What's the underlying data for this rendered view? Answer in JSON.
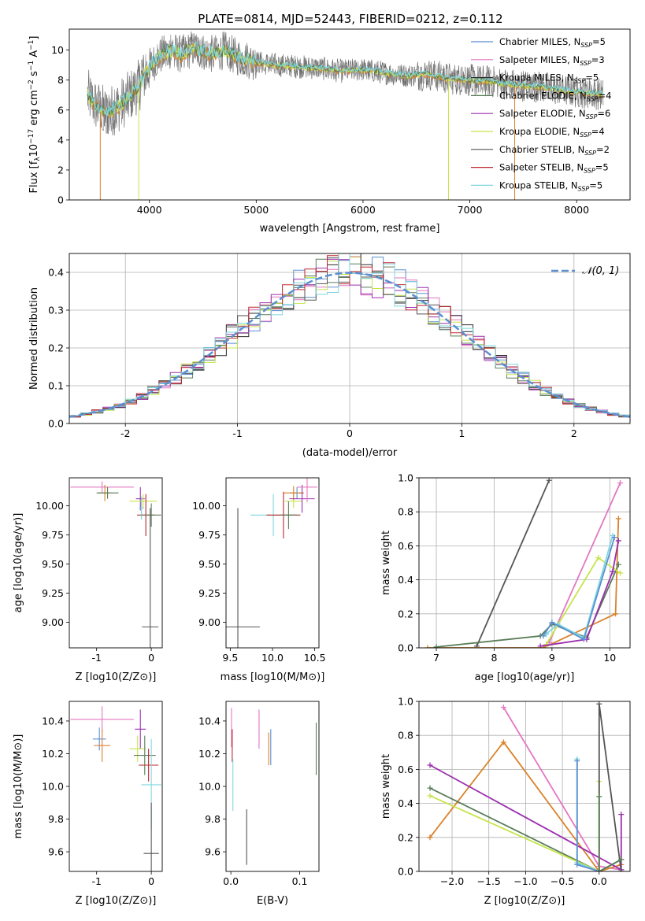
{
  "figure": {
    "title": "PLATE=0814, MJD=52443, FIBERID=0212, z=0.112"
  },
  "colors": {
    "chabrier_miles": "#5b8fd1",
    "salpeter_miles": "#e377c2",
    "kroupa_miles": "#2b2b2b",
    "chabrier_elodie": "#5a7d5a",
    "salpeter_elodie": "#9b2fae",
    "kroupa_elodie": "#c6e44c",
    "chabrier_stelib": "#555555",
    "salpeter_stelib": "#c0272d",
    "kroupa_stelib": "#7fd6df",
    "orange": "#d9822b",
    "gaussian": "#5b8fd1",
    "grid": "#b0b0b0"
  },
  "chart_data": [
    {
      "id": "spectrum",
      "type": "line",
      "title": "PLATE=0814, MJD=52443, FIBERID=0212, z=0.112",
      "xlabel": "wavelength [Angstrom, rest frame]",
      "ylabel": "Flux [f_λ 10^-17 erg cm^-2 s^-1 A^-1]",
      "xlim": [
        3250,
        8500
      ],
      "ylim": [
        0,
        11.4
      ],
      "xticks": [
        4000,
        5000,
        6000,
        7000,
        8000
      ],
      "yticks": [
        0,
        2,
        4,
        6,
        8,
        10
      ],
      "grid": false,
      "legend_position": "right",
      "legend": [
        {
          "label": "Chabrier MILES, N",
          "sub": "SSP",
          "n": "=5",
          "color_key": "chabrier_miles"
        },
        {
          "label": "Salpeter MILES, N",
          "sub": "SSP",
          "n": "=3",
          "color_key": "salpeter_miles"
        },
        {
          "label": "Kroupa MILES, N",
          "sub": "SSP",
          "n": "=5",
          "color_key": "kroupa_miles"
        },
        {
          "label": "Chabrier ELODIE, N",
          "sub": "SSP",
          "n": "=4",
          "color_key": "chabrier_elodie"
        },
        {
          "label": "Salpeter ELODIE, N",
          "sub": "SSP",
          "n": "=6",
          "color_key": "salpeter_elodie"
        },
        {
          "label": "Kroupa ELODIE, N",
          "sub": "SSP",
          "n": "=4",
          "color_key": "kroupa_elodie"
        },
        {
          "label": "Chabrier STELIB, N",
          "sub": "SSP",
          "n": "=2",
          "color_key": "chabrier_stelib"
        },
        {
          "label": "Salpeter STELIB, N",
          "sub": "SSP",
          "n": "=5",
          "color_key": "salpeter_stelib"
        },
        {
          "label": "Kroupa STELIB, N",
          "sub": "SSP",
          "n": "=5",
          "color_key": "kroupa_stelib"
        }
      ],
      "continuum": {
        "x": [
          3420,
          3500,
          3600,
          3700,
          3800,
          3900,
          4000,
          4100,
          4200,
          4300,
          4400,
          4500,
          4600,
          4700,
          4800,
          4900,
          5000,
          5200,
          5400,
          5600,
          5800,
          6000,
          6200,
          6400,
          6600,
          6800,
          7000,
          7200,
          7400,
          7600,
          7800,
          8000,
          8200,
          8250
        ],
        "y": [
          7.0,
          6.3,
          5.8,
          6.2,
          6.8,
          7.6,
          8.9,
          9.6,
          10.0,
          9.7,
          10.1,
          9.9,
          9.7,
          10.0,
          9.6,
          9.4,
          9.2,
          9.0,
          8.9,
          8.8,
          8.6,
          8.7,
          8.5,
          8.3,
          8.4,
          8.1,
          8.0,
          7.9,
          7.7,
          7.6,
          7.4,
          7.2,
          7.1,
          7.0
        ]
      }
    },
    {
      "id": "residuals",
      "type": "histogram",
      "xlabel": "(data-model)/error",
      "ylabel": "Normed distribution",
      "xlim": [
        -2.5,
        2.5
      ],
      "ylim": [
        0,
        0.45
      ],
      "xticks": [
        -2,
        -1,
        0,
        1,
        2
      ],
      "yticks": [
        0.0,
        0.1,
        0.2,
        0.3,
        0.4
      ],
      "grid": true,
      "legend_position": "top-right",
      "legend": "𝒩(0, 1)",
      "bin_width": 0.1,
      "gaussian": {
        "mu": 0,
        "sigma": 1
      }
    },
    {
      "id": "age_vs_Z",
      "type": "errorbar",
      "xlabel": "Z [log10(Z/Z⊙)]",
      "ylabel": "age [log10(age/yr)]",
      "xlim": [
        -1.5,
        0.2
      ],
      "ylim": [
        8.78,
        10.24
      ],
      "xticks": [
        -1,
        0
      ],
      "yticks": [
        9.0,
        9.25,
        9.5,
        9.75,
        10.0
      ],
      "points": [
        {
          "x": -0.9,
          "y": 10.16,
          "xerr": 0.58,
          "yerr": 0.05,
          "color_key": "salpeter_miles"
        },
        {
          "x": -0.85,
          "y": 10.11,
          "xerr": 0.12,
          "yerr": 0.07,
          "color_key": "orange"
        },
        {
          "x": -0.8,
          "y": 10.11,
          "xerr": 0.2,
          "yerr": 0.05,
          "color_key": "chabrier_elodie"
        },
        {
          "x": -0.2,
          "y": 10.06,
          "xerr": 0.08,
          "yerr": 0.1,
          "color_key": "salpeter_elodie"
        },
        {
          "x": -0.15,
          "y": 10.04,
          "xerr": 0.25,
          "yerr": 0.06,
          "color_key": "kroupa_elodie"
        },
        {
          "x": -0.1,
          "y": 9.92,
          "xerr": 0.16,
          "yerr": 0.18,
          "color_key": "salpeter_stelib"
        },
        {
          "x": -0.18,
          "y": 9.98,
          "xerr": 0.05,
          "yerr": 0.1,
          "color_key": "kroupa_stelib"
        },
        {
          "x": 0.0,
          "y": 9.92,
          "xerr": 0.18,
          "yerr": 0.1,
          "color_key": "chabrier_elodie"
        },
        {
          "x": -0.02,
          "y": 8.96,
          "xerr": 0.15,
          "yerr": 1.02,
          "color_key": "chabrier_stelib"
        }
      ]
    },
    {
      "id": "age_vs_mass",
      "type": "errorbar",
      "xlabel": "mass [log10(M/M⊙)]",
      "ylabel": "",
      "xlim": [
        9.45,
        10.55
      ],
      "ylim": [
        8.78,
        10.24
      ],
      "xticks": [
        9.5,
        10.0,
        10.5
      ],
      "yticks": [
        9.0,
        9.25,
        9.5,
        9.75,
        10.0
      ],
      "points": [
        {
          "x": 9.59,
          "y": 8.96,
          "xerr": 0.26,
          "yerr": 1.02,
          "color_key": "chabrier_stelib"
        },
        {
          "x": 10.01,
          "y": 9.92,
          "xerr": 0.27,
          "yerr": 0.18,
          "color_key": "kroupa_stelib"
        },
        {
          "x": 10.13,
          "y": 9.92,
          "xerr": 0.2,
          "yerr": 0.2,
          "color_key": "salpeter_stelib"
        },
        {
          "x": 10.19,
          "y": 9.92,
          "xerr": 0.1,
          "yerr": 0.12,
          "color_key": "chabrier_elodie"
        },
        {
          "x": 10.25,
          "y": 10.04,
          "xerr": 0.1,
          "yerr": 0.06,
          "color_key": "kroupa_elodie"
        },
        {
          "x": 10.29,
          "y": 10.11,
          "xerr": 0.08,
          "yerr": 0.05,
          "color_key": "chabrier_miles"
        },
        {
          "x": 10.25,
          "y": 10.11,
          "xerr": 0.12,
          "yerr": 0.06,
          "color_key": "orange"
        },
        {
          "x": 10.35,
          "y": 10.06,
          "xerr": 0.15,
          "yerr": 0.12,
          "color_key": "salpeter_elodie"
        },
        {
          "x": 10.41,
          "y": 10.16,
          "xerr": 0.12,
          "yerr": 0.13,
          "color_key": "salpeter_miles"
        }
      ]
    },
    {
      "id": "mass_weight_vs_age",
      "type": "line",
      "xlabel": "age [log10(age/yr)]",
      "ylabel": "mass weight",
      "xlim": [
        6.7,
        10.35
      ],
      "ylim": [
        0,
        1
      ],
      "xticks": [
        7,
        8,
        9,
        10
      ],
      "yticks": [
        0.0,
        0.2,
        0.4,
        0.6,
        0.8,
        1.0
      ],
      "grid": true,
      "series": [
        {
          "color_key": "chabrier_stelib",
          "x": [
            7.7,
            8.95
          ],
          "y": [
            0.01,
            0.985
          ]
        },
        {
          "color_key": "salpeter_miles",
          "x": [
            8.95,
            10.18
          ],
          "y": [
            0.03,
            0.97
          ]
        },
        {
          "color_key": "orange",
          "x": [
            6.85,
            8.85,
            10.1,
            10.15
          ],
          "y": [
            0.0,
            0.0,
            0.2,
            0.76
          ]
        },
        {
          "color_key": "chabrier_elodie",
          "x": [
            7.0,
            8.8,
            9.0,
            9.6,
            10.15
          ],
          "y": [
            0.005,
            0.07,
            0.14,
            0.06,
            0.49
          ]
        },
        {
          "color_key": "kroupa_elodie",
          "x": [
            8.9,
            9.8,
            10.18
          ],
          "y": [
            0.02,
            0.53,
            0.44
          ]
        },
        {
          "color_key": "salpeter_elodie",
          "x": [
            8.8,
            9.6,
            10.05,
            10.15
          ],
          "y": [
            0.01,
            0.05,
            0.45,
            0.63
          ]
        },
        {
          "color_key": "kroupa_stelib",
          "x": [
            8.9,
            9.1,
            9.55,
            10.05
          ],
          "y": [
            0.08,
            0.14,
            0.06,
            0.66
          ]
        },
        {
          "color_key": "chabrier_miles",
          "x": [
            8.85,
            9.0,
            9.55,
            10.08
          ],
          "y": [
            0.07,
            0.15,
            0.05,
            0.65
          ]
        }
      ]
    },
    {
      "id": "mass_vs_Z",
      "type": "errorbar",
      "xlabel": "Z [log10(Z/Z⊙)]",
      "ylabel": "mass [log10(M/M⊙)]",
      "xlim": [
        -1.5,
        0.2
      ],
      "ylim": [
        9.48,
        10.52
      ],
      "xticks": [
        -1,
        0
      ],
      "yticks": [
        9.6,
        9.8,
        10.0,
        10.2,
        10.4
      ],
      "points": [
        {
          "x": -0.9,
          "y": 10.41,
          "xerr": 0.58,
          "yerr": 0.08,
          "color_key": "salpeter_miles"
        },
        {
          "x": -0.95,
          "y": 10.29,
          "xerr": 0.12,
          "yerr": 0.07,
          "color_key": "chabrier_miles"
        },
        {
          "x": -0.9,
          "y": 10.25,
          "xerr": 0.15,
          "yerr": 0.1,
          "color_key": "orange"
        },
        {
          "x": -0.2,
          "y": 10.35,
          "xerr": 0.1,
          "yerr": 0.12,
          "color_key": "salpeter_elodie"
        },
        {
          "x": -0.25,
          "y": 10.23,
          "xerr": 0.15,
          "yerr": 0.08,
          "color_key": "kroupa_elodie"
        },
        {
          "x": -0.12,
          "y": 10.19,
          "xerr": 0.2,
          "yerr": 0.12,
          "color_key": "chabrier_elodie"
        },
        {
          "x": -0.05,
          "y": 10.13,
          "xerr": 0.18,
          "yerr": 0.1,
          "color_key": "salpeter_stelib"
        },
        {
          "x": 0.0,
          "y": 10.01,
          "xerr": 0.18,
          "yerr": 0.28,
          "color_key": "kroupa_stelib"
        },
        {
          "x": 0.0,
          "y": 9.59,
          "xerr": 0.14,
          "yerr": 0.31,
          "color_key": "chabrier_stelib"
        }
      ]
    },
    {
      "id": "mass_vs_EBV",
      "type": "errorbar",
      "xlabel": "E(B-V)",
      "ylabel": "",
      "xlim": [
        -0.007,
        0.128
      ],
      "ylim": [
        9.48,
        10.52
      ],
      "xticks": [
        0.0,
        0.1
      ],
      "yticks": [
        9.6,
        9.8,
        10.0,
        10.2,
        10.4
      ],
      "points": [
        {
          "x": 0.001,
          "y": 10.36,
          "xerr": 0,
          "yerr": 0.12,
          "color_key": "salpeter_miles"
        },
        {
          "x": 0.002,
          "y": 10.25,
          "xerr": 0,
          "yerr": 0.1,
          "color_key": "salpeter_stelib"
        },
        {
          "x": 0.003,
          "y": 10.01,
          "xerr": 0,
          "yerr": 0.16,
          "color_key": "kroupa_stelib"
        },
        {
          "x": 0.023,
          "y": 9.69,
          "xerr": 0,
          "yerr": 0.17,
          "color_key": "chabrier_stelib"
        },
        {
          "x": 0.041,
          "y": 10.35,
          "xerr": 0,
          "yerr": 0.12,
          "color_key": "salpeter_miles"
        },
        {
          "x": 0.055,
          "y": 10.23,
          "xerr": 0,
          "yerr": 0.1,
          "color_key": "orange"
        },
        {
          "x": 0.058,
          "y": 10.24,
          "xerr": 0,
          "yerr": 0.11,
          "color_key": "chabrier_miles"
        },
        {
          "x": 0.124,
          "y": 10.23,
          "xerr": 0,
          "yerr": 0.16,
          "color_key": "chabrier_elodie"
        }
      ]
    },
    {
      "id": "mass_weight_vs_Z",
      "type": "line",
      "xlabel": "Z [log10(Z/Z⊙)]",
      "ylabel": "mass weight",
      "xlim": [
        -2.45,
        0.42
      ],
      "ylim": [
        0,
        1
      ],
      "xticks": [
        -2.0,
        -1.5,
        -1.0,
        -0.5,
        0.0
      ],
      "yticks": [
        0.0,
        0.2,
        0.4,
        0.6,
        0.8,
        1.0
      ],
      "grid": true,
      "series": [
        {
          "color_key": "salpeter_miles",
          "x": [
            -1.3,
            0.0,
            0.3
          ],
          "y": [
            0.965,
            0.03,
            0.01
          ]
        },
        {
          "color_key": "orange",
          "x": [
            -2.3,
            -1.3,
            0.0,
            0.3
          ],
          "y": [
            0.2,
            0.76,
            0.0,
            0.04
          ]
        },
        {
          "color_key": "salpeter_elodie",
          "x": [
            -2.3,
            0.3,
            0.3
          ],
          "y": [
            0.625,
            0.01,
            0.335
          ]
        },
        {
          "color_key": "chabrier_elodie",
          "x": [
            -2.3,
            0.0,
            0.3
          ],
          "y": [
            0.49,
            0.0,
            0.07
          ]
        },
        {
          "color_key": "kroupa_elodie",
          "x": [
            -2.3,
            0.0,
            0.0
          ],
          "y": [
            0.445,
            0.0,
            0.53
          ]
        },
        {
          "color_key": "kroupa_stelib",
          "x": [
            -0.3,
            -0.3,
            0.0
          ],
          "y": [
            0.66,
            0.05,
            0.0
          ]
        },
        {
          "color_key": "chabrier_miles",
          "x": [
            -0.3,
            -0.3,
            0.0
          ],
          "y": [
            0.65,
            0.04,
            0.0
          ]
        },
        {
          "color_key": "chabrier_stelib",
          "x": [
            0.0,
            0.0,
            0.3
          ],
          "y": [
            0.0,
            0.985,
            0.0
          ]
        },
        {
          "color_key": "chabrier_elodie",
          "x": [
            0.0,
            0.0,
            0.3
          ],
          "y": [
            0.44,
            0.0,
            0.07
          ]
        }
      ]
    }
  ]
}
